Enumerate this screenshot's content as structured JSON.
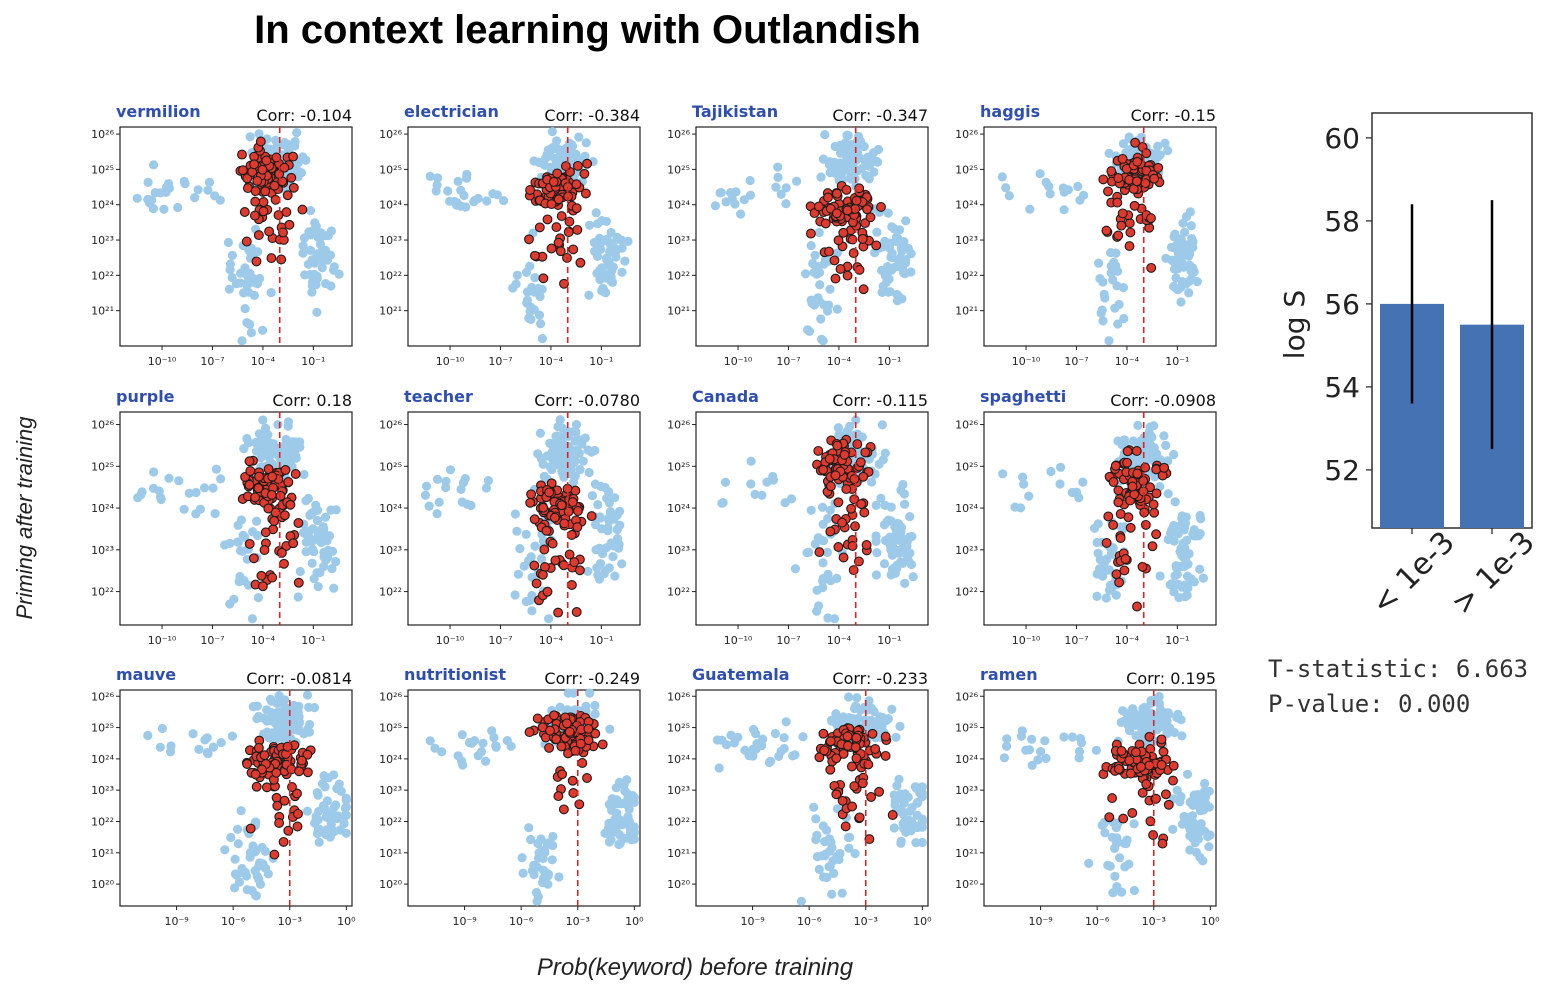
{
  "title": "In context learning with Outlandish",
  "ylabel": "Priming after training",
  "xlabel": "Prob(keyword) before training",
  "colors": {
    "background_points": "#9ecae9",
    "keyword_points": "#e03a2e",
    "keyword_edge": "#1a1a1a",
    "threshold_line": "#d62728",
    "label_blue": "#2f4fb0",
    "bar": "#4472b3"
  },
  "chart_data": [
    {
      "type": "scatter",
      "name": "vermilion",
      "corr": "Corr: -0.104",
      "row": 0,
      "x_ticks": [
        {
          "v": -10,
          "label": "10⁻¹⁰"
        },
        {
          "v": -7,
          "label": "10⁻⁷"
        },
        {
          "v": -4,
          "label": "10⁻⁴"
        },
        {
          "v": -1,
          "label": "10⁻¹"
        }
      ],
      "xlim": [
        -12.5,
        1.3
      ],
      "threshold_x": -3,
      "y_ticks": [
        21,
        22,
        23,
        24,
        25,
        26
      ],
      "ylim": [
        20.0,
        26.2
      ],
      "log_scale": true
    },
    {
      "type": "scatter",
      "name": "electrician",
      "corr": "Corr: -0.384",
      "row": 0,
      "x_ticks": [
        {
          "v": -10,
          "label": "10⁻¹⁰"
        },
        {
          "v": -7,
          "label": "10⁻⁷"
        },
        {
          "v": -4,
          "label": "10⁻⁴"
        },
        {
          "v": -1,
          "label": "10⁻¹"
        }
      ],
      "xlim": [
        -12.5,
        1.3
      ],
      "threshold_x": -3,
      "y_ticks": [
        21,
        22,
        23,
        24,
        25,
        26
      ],
      "ylim": [
        20.0,
        26.2
      ],
      "log_scale": true
    },
    {
      "type": "scatter",
      "name": "Tajikistan",
      "corr": "Corr: -0.347",
      "row": 0,
      "x_ticks": [
        {
          "v": -10,
          "label": "10⁻¹⁰"
        },
        {
          "v": -7,
          "label": "10⁻⁷"
        },
        {
          "v": -4,
          "label": "10⁻⁴"
        },
        {
          "v": -1,
          "label": "10⁻¹"
        }
      ],
      "xlim": [
        -12.5,
        1.3
      ],
      "threshold_x": -3,
      "y_ticks": [
        21,
        22,
        23,
        24,
        25,
        26
      ],
      "ylim": [
        20.0,
        26.2
      ],
      "log_scale": true
    },
    {
      "type": "scatter",
      "name": "haggis",
      "corr": "Corr: -0.15",
      "row": 0,
      "x_ticks": [
        {
          "v": -10,
          "label": "10⁻¹⁰"
        },
        {
          "v": -7,
          "label": "10⁻⁷"
        },
        {
          "v": -4,
          "label": "10⁻⁴"
        },
        {
          "v": -1,
          "label": "10⁻¹"
        }
      ],
      "xlim": [
        -12.5,
        1.3
      ],
      "threshold_x": -3,
      "y_ticks": [
        21,
        22,
        23,
        24,
        25,
        26
      ],
      "ylim": [
        20.0,
        26.2
      ],
      "log_scale": true
    },
    {
      "type": "scatter",
      "name": "purple",
      "corr": "Corr: 0.18",
      "row": 1,
      "x_ticks": [
        {
          "v": -10,
          "label": "10⁻¹⁰"
        },
        {
          "v": -7,
          "label": "10⁻⁷"
        },
        {
          "v": -4,
          "label": "10⁻⁴"
        },
        {
          "v": -1,
          "label": "10⁻¹"
        }
      ],
      "xlim": [
        -12.5,
        1.3
      ],
      "threshold_x": -3,
      "y_ticks": [
        22,
        23,
        24,
        25,
        26
      ],
      "ylim": [
        21.2,
        26.3
      ],
      "log_scale": true
    },
    {
      "type": "scatter",
      "name": "teacher",
      "corr": "Corr: -0.0780",
      "row": 1,
      "x_ticks": [
        {
          "v": -10,
          "label": "10⁻¹⁰"
        },
        {
          "v": -7,
          "label": "10⁻⁷"
        },
        {
          "v": -4,
          "label": "10⁻⁴"
        },
        {
          "v": -1,
          "label": "10⁻¹"
        }
      ],
      "xlim": [
        -12.5,
        1.3
      ],
      "threshold_x": -3,
      "y_ticks": [
        22,
        23,
        24,
        25,
        26
      ],
      "ylim": [
        21.2,
        26.3
      ],
      "log_scale": true
    },
    {
      "type": "scatter",
      "name": "Canada",
      "corr": "Corr: -0.115",
      "row": 1,
      "x_ticks": [
        {
          "v": -10,
          "label": "10⁻¹⁰"
        },
        {
          "v": -7,
          "label": "10⁻⁷"
        },
        {
          "v": -4,
          "label": "10⁻⁴"
        },
        {
          "v": -1,
          "label": "10⁻¹"
        }
      ],
      "xlim": [
        -12.5,
        1.3
      ],
      "threshold_x": -3,
      "y_ticks": [
        22,
        23,
        24,
        25,
        26
      ],
      "ylim": [
        21.2,
        26.3
      ],
      "log_scale": true
    },
    {
      "type": "scatter",
      "name": "spaghetti",
      "corr": "Corr: -0.0908",
      "row": 1,
      "x_ticks": [
        {
          "v": -10,
          "label": "10⁻¹⁰"
        },
        {
          "v": -7,
          "label": "10⁻⁷"
        },
        {
          "v": -4,
          "label": "10⁻⁴"
        },
        {
          "v": -1,
          "label": "10⁻¹"
        }
      ],
      "xlim": [
        -12.5,
        1.3
      ],
      "threshold_x": -3,
      "y_ticks": [
        22,
        23,
        24,
        25,
        26
      ],
      "ylim": [
        21.2,
        26.3
      ],
      "log_scale": true
    },
    {
      "type": "scatter",
      "name": "mauve",
      "corr": "Corr: -0.0814",
      "row": 2,
      "x_ticks": [
        {
          "v": -9,
          "label": "10⁻⁹"
        },
        {
          "v": -6,
          "label": "10⁻⁶"
        },
        {
          "v": -3,
          "label": "10⁻³"
        },
        {
          "v": 0,
          "label": "10⁰"
        }
      ],
      "xlim": [
        -12.0,
        0.3
      ],
      "threshold_x": -3,
      "y_ticks": [
        20,
        21,
        22,
        23,
        24,
        25,
        26
      ],
      "ylim": [
        19.3,
        26.2
      ],
      "log_scale": true
    },
    {
      "type": "scatter",
      "name": "nutritionist",
      "corr": "Corr: -0.249",
      "row": 2,
      "x_ticks": [
        {
          "v": -9,
          "label": "10⁻⁹"
        },
        {
          "v": -6,
          "label": "10⁻⁶"
        },
        {
          "v": -3,
          "label": "10⁻³"
        },
        {
          "v": 0,
          "label": "10⁰"
        }
      ],
      "xlim": [
        -12.0,
        0.3
      ],
      "threshold_x": -3,
      "y_ticks": [
        20,
        21,
        22,
        23,
        24,
        25,
        26
      ],
      "ylim": [
        19.3,
        26.2
      ],
      "log_scale": true
    },
    {
      "type": "scatter",
      "name": "Guatemala",
      "corr": "Corr: -0.233",
      "row": 2,
      "x_ticks": [
        {
          "v": -9,
          "label": "10⁻⁹"
        },
        {
          "v": -6,
          "label": "10⁻⁶"
        },
        {
          "v": -3,
          "label": "10⁻³"
        },
        {
          "v": 0,
          "label": "10⁰"
        }
      ],
      "xlim": [
        -12.0,
        0.3
      ],
      "threshold_x": -3,
      "y_ticks": [
        20,
        21,
        22,
        23,
        24,
        25,
        26
      ],
      "ylim": [
        19.3,
        26.2
      ],
      "log_scale": true
    },
    {
      "type": "scatter",
      "name": "ramen",
      "corr": "Corr: 0.195",
      "row": 2,
      "x_ticks": [
        {
          "v": -9,
          "label": "10⁻⁹"
        },
        {
          "v": -6,
          "label": "10⁻⁶"
        },
        {
          "v": -3,
          "label": "10⁻³"
        },
        {
          "v": 0,
          "label": "10⁰"
        }
      ],
      "xlim": [
        -12.0,
        0.3
      ],
      "threshold_x": -3,
      "y_ticks": [
        20,
        21,
        22,
        23,
        24,
        25,
        26
      ],
      "ylim": [
        19.3,
        26.2
      ],
      "log_scale": true
    },
    {
      "type": "bar",
      "categories": [
        "< 1e-3",
        "> 1e-3"
      ],
      "values": [
        56.0,
        55.5
      ],
      "error_low": [
        53.6,
        52.5
      ],
      "error_high": [
        58.4,
        58.5
      ],
      "ylabel": "log S",
      "yticks": [
        52,
        54,
        56,
        58,
        60
      ],
      "ylim": [
        50.6,
        60.6
      ]
    }
  ],
  "stats": {
    "t_statistic": "T-statistic: 6.663",
    "p_value": "P-value: 0.000"
  }
}
